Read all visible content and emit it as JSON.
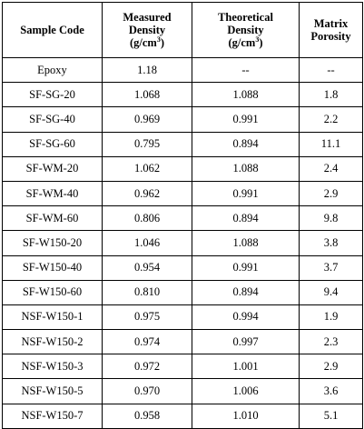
{
  "headers": {
    "sample_code": "Sample Code",
    "measured": {
      "line1": "Measured",
      "line2": "Density",
      "line3": "(g/cm",
      "sup": "3",
      "close": ")"
    },
    "theoretical": {
      "line1": "Theoretical",
      "line2": "Density",
      "line3": "(g/cm",
      "sup": "3",
      "close": ")"
    },
    "porosity": {
      "line1": "Matrix",
      "line2": "Porosity"
    }
  },
  "rows": [
    {
      "code": "Epoxy",
      "measured": "1.18",
      "theoretical": "--",
      "porosity": "--"
    },
    {
      "code": "SF-SG-20",
      "measured": "1.068",
      "theoretical": "1.088",
      "porosity": "1.8"
    },
    {
      "code": "SF-SG-40",
      "measured": "0.969",
      "theoretical": "0.991",
      "porosity": "2.2"
    },
    {
      "code": "SF-SG-60",
      "measured": "0.795",
      "theoretical": "0.894",
      "porosity": "11.1"
    },
    {
      "code": "SF-WM-20",
      "measured": "1.062",
      "theoretical": "1.088",
      "porosity": "2.4"
    },
    {
      "code": "SF-WM-40",
      "measured": "0.962",
      "theoretical": "0.991",
      "porosity": "2.9"
    },
    {
      "code": "SF-WM-60",
      "measured": "0.806",
      "theoretical": "0.894",
      "porosity": "9.8"
    },
    {
      "code": "SF-W150-20",
      "measured": "1.046",
      "theoretical": "1.088",
      "porosity": "3.8"
    },
    {
      "code": "SF-W150-40",
      "measured": "0.954",
      "theoretical": "0.991",
      "porosity": "3.7"
    },
    {
      "code": "SF-W150-60",
      "measured": "0.810",
      "theoretical": "0.894",
      "porosity": "9.4"
    },
    {
      "code": "NSF-W150-1",
      "measured": "0.975",
      "theoretical": "0.994",
      "porosity": "1.9"
    },
    {
      "code": "NSF-W150-2",
      "measured": "0.974",
      "theoretical": "0.997",
      "porosity": "2.3"
    },
    {
      "code": "NSF-W150-3",
      "measured": "0.972",
      "theoretical": "1.001",
      "porosity": "2.9"
    },
    {
      "code": "NSF-W150-5",
      "measured": "0.970",
      "theoretical": "1.006",
      "porosity": "3.6"
    },
    {
      "code": "NSF-W150-7",
      "measured": "0.958",
      "theoretical": "1.010",
      "porosity": "5.1"
    }
  ]
}
